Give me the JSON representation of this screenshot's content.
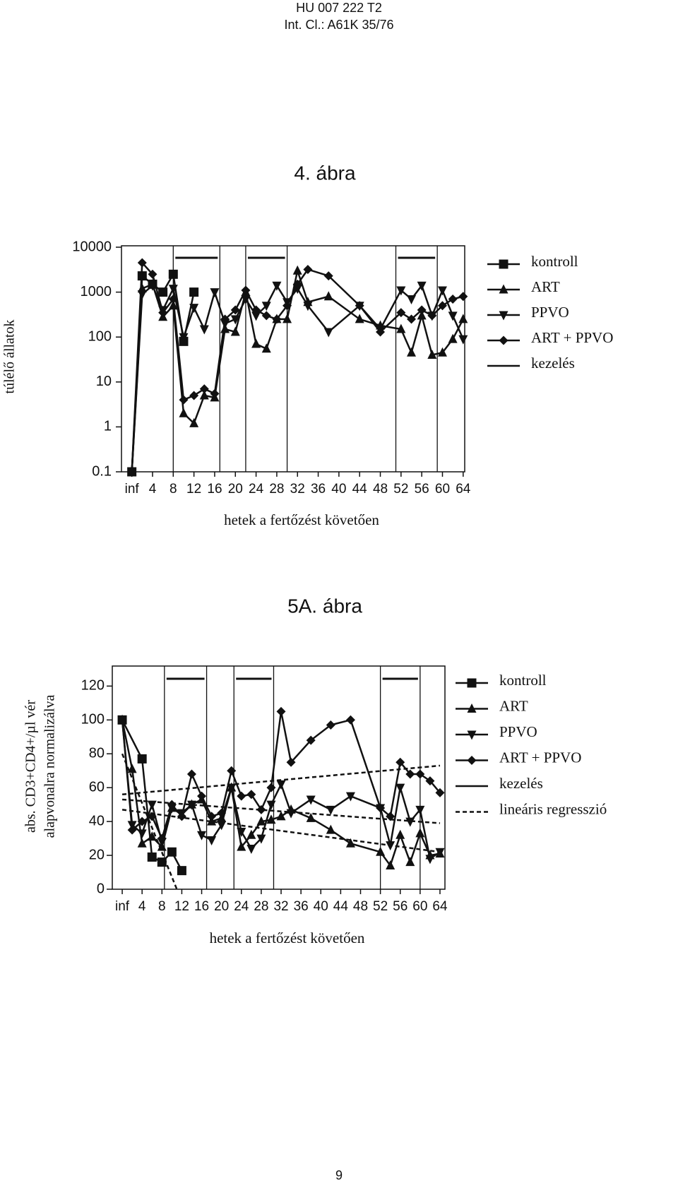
{
  "header": {
    "number": "HU 007 222 T2",
    "class": "Int. Cl.: A61K 35/76"
  },
  "chart_data": [
    {
      "type": "line",
      "title": "4. ábra",
      "xlabel": "hetek a fertőzést követően",
      "ylabel": "túlélő állatok",
      "log_y": true,
      "xlim": [
        -2,
        64.3
      ],
      "ylim": [
        0.1,
        10000
      ],
      "xticks": [
        {
          "value": 0,
          "label": "inf"
        },
        4,
        8,
        12,
        16,
        20,
        24,
        28,
        32,
        36,
        40,
        44,
        48,
        52,
        56,
        60,
        64
      ],
      "yticks": [
        0.1,
        1,
        10,
        100,
        1000,
        10000
      ],
      "series": [
        {
          "name": "kontroll",
          "color": "#111",
          "marker": "square",
          "x": [
            0,
            2,
            4,
            6,
            8,
            10,
            12
          ],
          "values": [
            0.1,
            2300,
            1500,
            1000,
            2500,
            80,
            1000
          ]
        },
        {
          "name": "ART",
          "color": "#111",
          "marker": "triangle-up",
          "x": [
            0,
            2,
            4,
            6,
            8,
            10,
            12,
            14,
            16,
            18,
            20,
            22,
            24,
            26,
            28,
            30,
            32,
            34,
            38,
            44,
            48,
            52,
            54,
            56,
            58,
            60,
            62,
            64
          ],
          "values": [
            0.1,
            1200,
            1500,
            280,
            500,
            2,
            1.2,
            5,
            4.5,
            150,
            130,
            1000,
            70,
            55,
            250,
            250,
            3000,
            600,
            800,
            250,
            180,
            150,
            45,
            300,
            40,
            45,
            90,
            250
          ]
        },
        {
          "name": "PPVO",
          "color": "#111",
          "marker": "triangle-down",
          "x": [
            0,
            2,
            4,
            6,
            8,
            10,
            12,
            14,
            16,
            18,
            20,
            22,
            24,
            26,
            28,
            30,
            32,
            34,
            38,
            44,
            48,
            52,
            54,
            56,
            58,
            60,
            62,
            64
          ],
          "values": [
            0.1,
            900,
            1400,
            400,
            1200,
            100,
            450,
            150,
            1000,
            200,
            250,
            700,
            300,
            500,
            1400,
            600,
            1200,
            500,
            130,
            500,
            150,
            1100,
            700,
            1400,
            300,
            1100,
            300,
            90
          ]
        },
        {
          "name": "ART + PPVO",
          "color": "#111",
          "marker": "diamond",
          "x": [
            0,
            2,
            4,
            6,
            8,
            10,
            12,
            14,
            16,
            18,
            20,
            22,
            24,
            26,
            28,
            30,
            32,
            34,
            38,
            44,
            48,
            52,
            54,
            56,
            58,
            60,
            62,
            64
          ],
          "values": [
            0.1,
            4500,
            2500,
            350,
            700,
            4,
            5,
            7,
            5.5,
            250,
            400,
            1100,
            400,
            300,
            250,
            500,
            1500,
            3200,
            2300,
            500,
            130,
            350,
            250,
            400,
            300,
            500,
            700,
            800
          ]
        },
        {
          "name": "kezelés",
          "color": "#111",
          "periods": [
            [
              8,
              17
            ],
            [
              22,
              30
            ],
            [
              51,
              59
            ]
          ]
        }
      ]
    },
    {
      "type": "line",
      "title": "5A. ábra",
      "xlabel": "hetek a fertőzést követően",
      "ylabel": [
        "abs. CD3+CD4+/µl vér",
        "alapvonalra normalizálva"
      ],
      "log_y": false,
      "xlim": [
        -2,
        65
      ],
      "ylim": [
        0,
        131
      ],
      "xticks": [
        {
          "value": 0,
          "label": "inf"
        },
        4,
        8,
        12,
        16,
        20,
        24,
        28,
        32,
        36,
        40,
        44,
        48,
        52,
        56,
        60,
        64
      ],
      "yticks": [
        0,
        20,
        40,
        60,
        80,
        100,
        120
      ],
      "series": [
        {
          "name": "kontroll",
          "color": "#111",
          "marker": "square",
          "x": [
            0,
            4,
            6,
            8,
            10,
            12
          ],
          "values": [
            100,
            77,
            19,
            16,
            22,
            11
          ]
        },
        {
          "name": "ART",
          "color": "#111",
          "marker": "triangle-up",
          "x": [
            0,
            2,
            4,
            6,
            8,
            10,
            12,
            14,
            16,
            18,
            20,
            22,
            24,
            26,
            28,
            30,
            32,
            34,
            38,
            42,
            46,
            52,
            54,
            56,
            58,
            60,
            62,
            64
          ],
          "values": [
            100,
            71,
            27,
            31,
            25,
            48,
            44,
            50,
            53,
            40,
            42,
            60,
            25,
            32,
            40,
            41,
            43,
            47,
            42,
            35,
            27,
            22,
            14,
            32,
            16,
            33,
            20,
            21
          ]
        },
        {
          "name": "PPVO",
          "color": "#111",
          "marker": "triangle-down",
          "x": [
            0,
            2,
            4,
            6,
            8,
            10,
            12,
            14,
            16,
            18,
            20,
            22,
            24,
            26,
            28,
            30,
            32,
            34,
            38,
            42,
            46,
            52,
            54,
            56,
            58,
            60,
            62,
            64
          ],
          "values": [
            100,
            38,
            33,
            50,
            28,
            48,
            45,
            50,
            32,
            29,
            38,
            60,
            34,
            24,
            30,
            50,
            62,
            45,
            53,
            47,
            55,
            48,
            26,
            60,
            40,
            47,
            18,
            22
          ]
        },
        {
          "name": "ART + PPVO",
          "color": "#111",
          "marker": "diamond",
          "x": [
            0,
            2,
            4,
            6,
            8,
            10,
            12,
            14,
            16,
            18,
            20,
            22,
            24,
            26,
            28,
            30,
            32,
            34,
            38,
            42,
            46,
            52,
            54,
            56,
            58,
            60,
            62,
            64
          ],
          "values": [
            100,
            35,
            40,
            43,
            30,
            50,
            43,
            68,
            55,
            43,
            45,
            70,
            55,
            56,
            47,
            60,
            105,
            75,
            88,
            97,
            100,
            48,
            43,
            75,
            68,
            68,
            64,
            57
          ]
        },
        {
          "name": "kezelés",
          "color": "#111",
          "periods": [
            [
              8.5,
              17
            ],
            [
              22.5,
              30.5
            ],
            [
              52,
              60
            ]
          ]
        },
        {
          "name": "lineáris regresszió",
          "color": "#111",
          "dashed": true,
          "lines": [
            {
              "x": [
                0,
                11
              ],
              "values": [
                80,
                0
              ]
            },
            {
              "x": [
                0,
                64
              ],
              "values": [
                56,
                73
              ]
            },
            {
              "x": [
                0,
                64
              ],
              "values": [
                53,
                39
              ]
            },
            {
              "x": [
                0,
                64
              ],
              "values": [
                47,
                22
              ]
            }
          ]
        }
      ]
    }
  ],
  "footer": {
    "page": "9"
  }
}
